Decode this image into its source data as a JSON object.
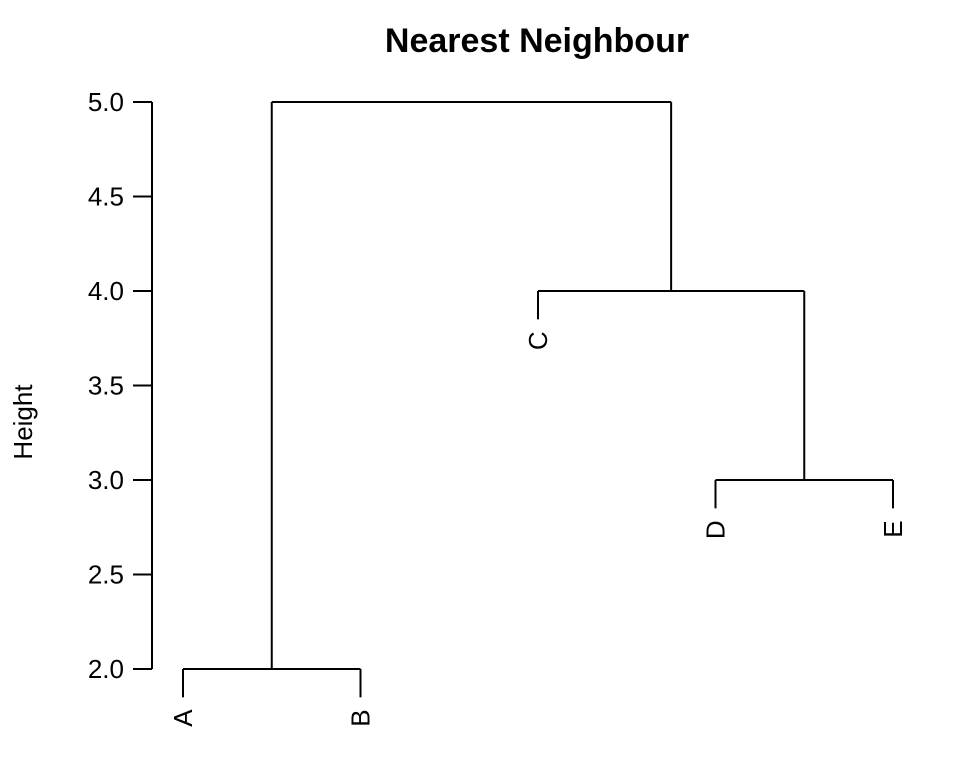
{
  "chart_data": {
    "type": "dendrogram",
    "title": "Nearest Neighbour",
    "ylabel": "Height",
    "xlabel": "",
    "ylim": [
      2.0,
      5.0
    ],
    "yticks": [
      "2.0",
      "2.5",
      "3.0",
      "3.5",
      "4.0",
      "4.5",
      "5.0"
    ],
    "leaves": [
      "A",
      "B",
      "C",
      "D",
      "E"
    ],
    "leaf_heights": [
      1.85,
      1.85,
      3.85,
      2.85,
      2.85
    ],
    "merges": [
      {
        "left": "A",
        "right": "B",
        "height": 2.0
      },
      {
        "left": "D",
        "right": "E",
        "height": 3.0
      },
      {
        "left": "C",
        "right": "DE",
        "height": 4.0
      },
      {
        "left": "AB",
        "right": "CDE",
        "height": 5.0
      }
    ]
  }
}
